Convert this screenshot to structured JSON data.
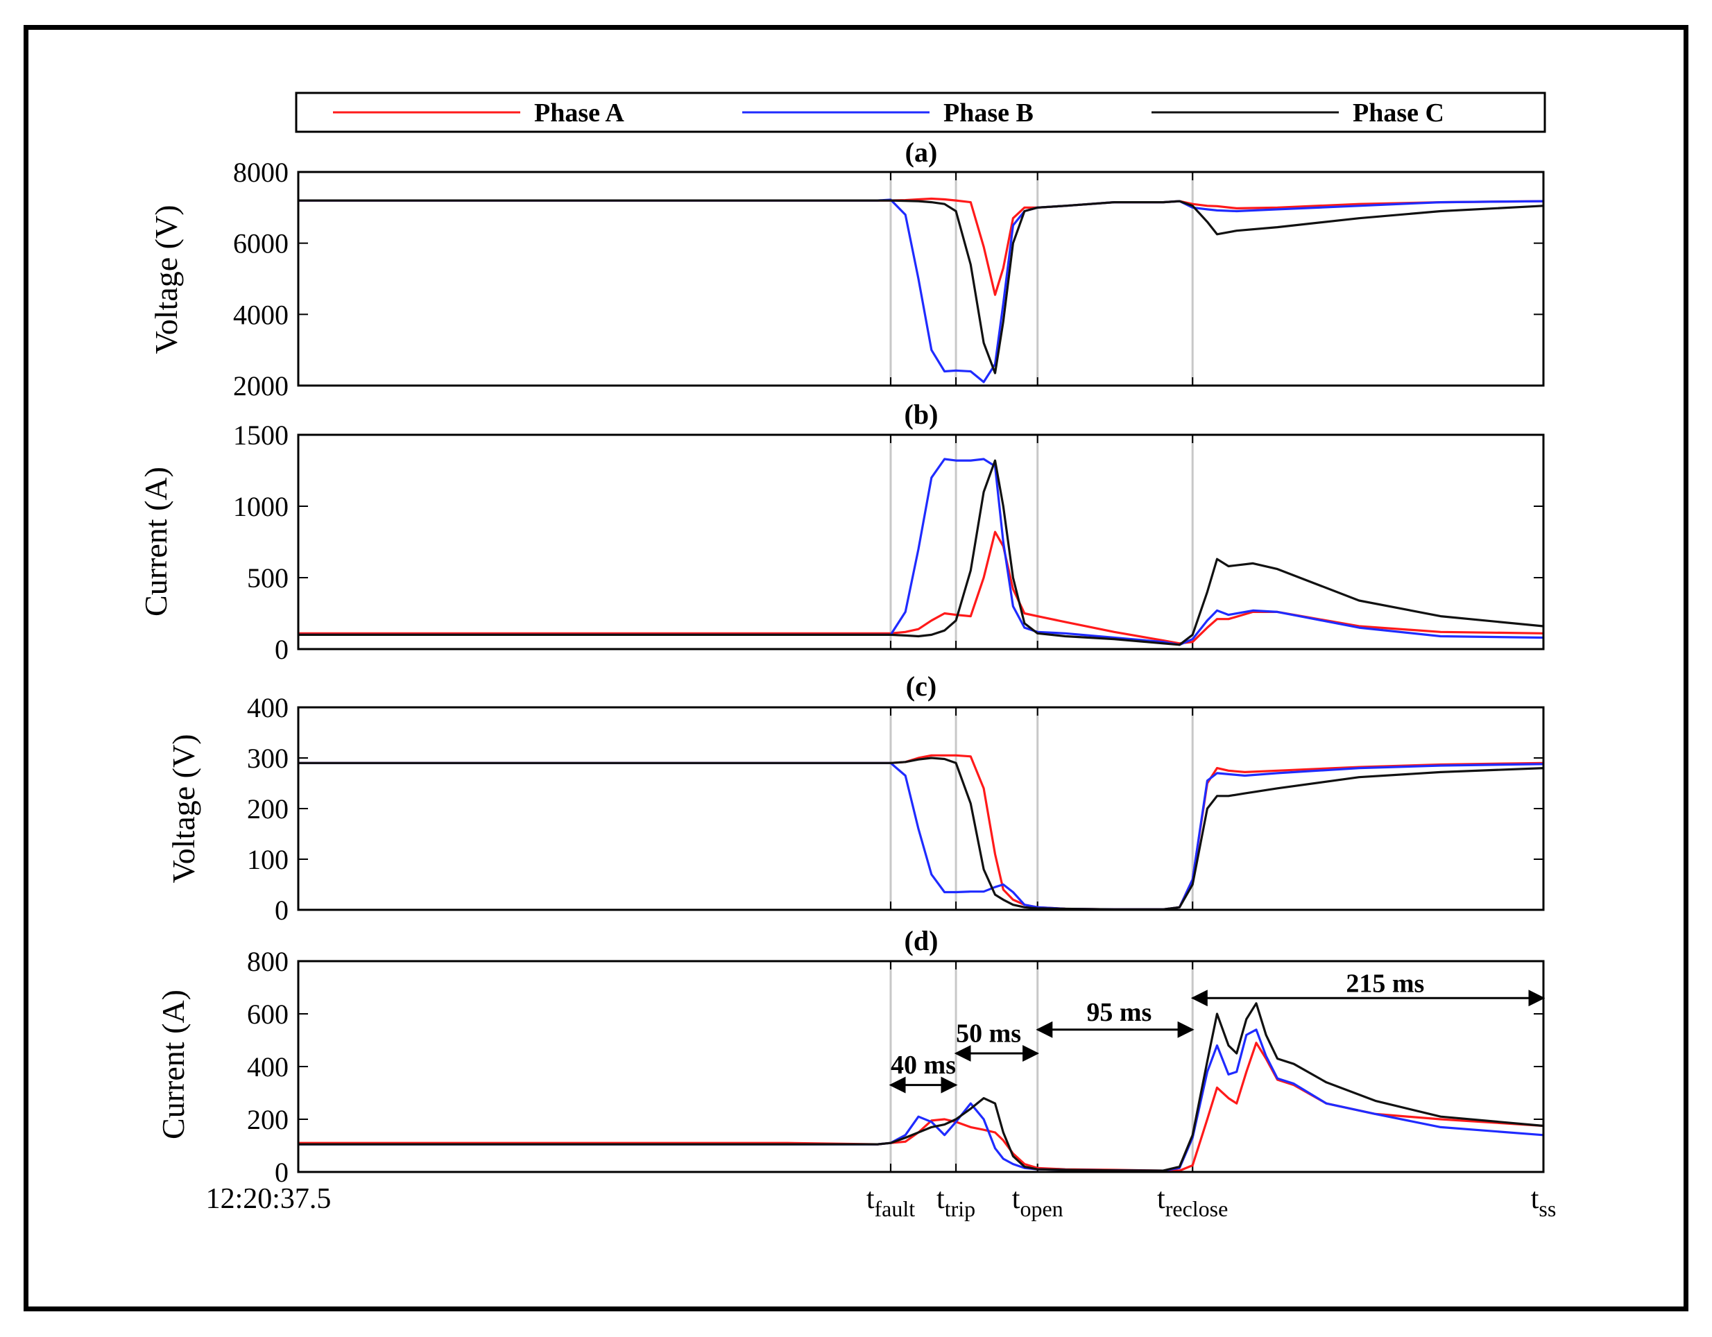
{
  "legend": {
    "items": [
      {
        "label": "Phase A",
        "color": "#ff1a1a"
      },
      {
        "label": "Phase B",
        "color": "#1f2bff"
      },
      {
        "label": "Phase C",
        "color": "#111111"
      }
    ]
  },
  "colors": {
    "phase_a": "#ff1a1a",
    "phase_b": "#1f2bff",
    "phase_c": "#111111",
    "grid": "#c8c8c8"
  },
  "x_axis": {
    "start_label": "12:20:37.5",
    "events": [
      {
        "main": "t",
        "sub": "fault",
        "x": 363
      },
      {
        "main": "t",
        "sub": "trip",
        "x": 403
      },
      {
        "main": "t",
        "sub": "open",
        "x": 453
      },
      {
        "main": "t",
        "sub": "reclose",
        "x": 548
      },
      {
        "main": "t",
        "sub": "ss",
        "x": 763
      }
    ],
    "xlim": [
      0,
      763
    ]
  },
  "annotations": [
    {
      "label": "40 ms",
      "from": 363,
      "to": 403,
      "y": 330,
      "label_x": 383,
      "label_y": 410
    },
    {
      "label": "50 ms",
      "from": 403,
      "to": 453,
      "y": 450,
      "label_x": 423,
      "label_y": 530
    },
    {
      "label": "95 ms",
      "from": 453,
      "to": 548,
      "y": 540,
      "label_x": 503,
      "label_y": 610
    },
    {
      "label": "215 ms",
      "from": 548,
      "to": 763,
      "y": 660,
      "label_x": 666,
      "label_y": 720
    }
  ],
  "chart_data": [
    {
      "type": "line",
      "title": "(a)",
      "ylabel": "Voltage (V)",
      "ylim": [
        2000,
        8000
      ],
      "yticks": [
        "2000",
        "4000",
        "6000",
        "8000"
      ],
      "x": [
        0,
        100,
        200,
        300,
        355,
        363,
        372,
        380,
        388,
        396,
        403,
        412,
        420,
        427,
        432,
        438,
        445,
        453,
        470,
        500,
        530,
        540,
        548,
        557,
        563,
        575,
        600,
        650,
        700,
        763
      ],
      "series": [
        {
          "name": "Phase A",
          "values": [
            7200,
            7200,
            7200,
            7200,
            7200,
            7200,
            7210,
            7230,
            7250,
            7230,
            7200,
            7150,
            5900,
            4550,
            5300,
            6700,
            7000,
            7000,
            7050,
            7150,
            7150,
            7180,
            7100,
            7050,
            7040,
            6980,
            7000,
            7100,
            7150,
            7180
          ]
        },
        {
          "name": "Phase B",
          "values": [
            7200,
            7200,
            7200,
            7200,
            7200,
            7220,
            6800,
            5000,
            3000,
            2400,
            2420,
            2400,
            2100,
            2600,
            4300,
            6500,
            6900,
            7000,
            7050,
            7150,
            7150,
            7180,
            7000,
            6950,
            6920,
            6900,
            6950,
            7050,
            7150,
            7180
          ]
        },
        {
          "name": "Phase C",
          "values": [
            7200,
            7200,
            7200,
            7200,
            7200,
            7200,
            7190,
            7180,
            7150,
            7100,
            6900,
            5400,
            3200,
            2350,
            3800,
            6000,
            6900,
            7000,
            7050,
            7150,
            7150,
            7180,
            7050,
            6600,
            6250,
            6350,
            6450,
            6700,
            6900,
            7050
          ]
        }
      ]
    },
    {
      "type": "line",
      "title": "(b)",
      "ylabel": "Current (A)",
      "ylim": [
        0,
        1500
      ],
      "yticks": [
        "0",
        "500",
        "1000",
        "1500"
      ],
      "x": [
        0,
        100,
        200,
        300,
        355,
        363,
        372,
        380,
        388,
        396,
        403,
        412,
        420,
        427,
        432,
        438,
        445,
        453,
        470,
        500,
        530,
        540,
        548,
        557,
        563,
        570,
        585,
        600,
        650,
        700,
        763
      ],
      "series": [
        {
          "name": "Phase A",
          "values": [
            110,
            110,
            110,
            110,
            110,
            110,
            120,
            140,
            200,
            250,
            240,
            230,
            500,
            820,
            720,
            420,
            250,
            230,
            190,
            120,
            60,
            40,
            50,
            150,
            210,
            210,
            260,
            260,
            160,
            120,
            110
          ]
        },
        {
          "name": "Phase B",
          "values": [
            100,
            100,
            100,
            100,
            100,
            100,
            260,
            700,
            1200,
            1330,
            1320,
            1320,
            1330,
            1280,
            750,
            300,
            150,
            120,
            110,
            80,
            50,
            30,
            70,
            200,
            270,
            240,
            270,
            260,
            150,
            90,
            80
          ]
        },
        {
          "name": "Phase C",
          "values": [
            100,
            100,
            100,
            100,
            100,
            100,
            95,
            90,
            100,
            130,
            200,
            550,
            1100,
            1320,
            1000,
            500,
            180,
            110,
            90,
            70,
            40,
            30,
            100,
            400,
            630,
            580,
            600,
            560,
            340,
            230,
            160
          ]
        }
      ]
    },
    {
      "type": "line",
      "title": "(c)",
      "ylabel": "Voltage (V)",
      "ylim": [
        0,
        400
      ],
      "yticks": [
        "0",
        "100",
        "200",
        "300",
        "400"
      ],
      "x": [
        0,
        100,
        200,
        300,
        355,
        363,
        372,
        380,
        388,
        396,
        403,
        412,
        420,
        427,
        432,
        438,
        445,
        453,
        470,
        500,
        530,
        540,
        548,
        557,
        563,
        570,
        580,
        600,
        650,
        700,
        763
      ],
      "series": [
        {
          "name": "Phase A",
          "values": [
            290,
            290,
            290,
            290,
            290,
            290,
            292,
            300,
            305,
            305,
            305,
            303,
            240,
            110,
            40,
            20,
            10,
            5,
            2,
            1,
            1,
            5,
            60,
            250,
            280,
            275,
            272,
            275,
            282,
            287,
            290
          ]
        },
        {
          "name": "Phase B",
          "values": [
            290,
            290,
            290,
            290,
            290,
            290,
            265,
            160,
            70,
            35,
            35,
            36,
            36,
            45,
            50,
            35,
            10,
            5,
            2,
            1,
            1,
            5,
            60,
            255,
            270,
            268,
            265,
            270,
            280,
            285,
            288
          ]
        },
        {
          "name": "Phase C",
          "values": [
            290,
            290,
            290,
            290,
            290,
            290,
            292,
            297,
            300,
            298,
            290,
            210,
            80,
            30,
            20,
            10,
            5,
            3,
            2,
            1,
            1,
            5,
            50,
            200,
            225,
            225,
            230,
            240,
            262,
            272,
            280
          ]
        }
      ]
    },
    {
      "type": "line",
      "title": "(d)",
      "ylabel": "Current (A)",
      "ylim": [
        0,
        800
      ],
      "yticks": [
        "0",
        "200",
        "400",
        "600",
        "800"
      ],
      "x": [
        0,
        100,
        200,
        300,
        355,
        363,
        372,
        380,
        388,
        396,
        403,
        412,
        420,
        427,
        432,
        438,
        445,
        453,
        470,
        500,
        530,
        540,
        548,
        557,
        563,
        570,
        575,
        581,
        587,
        593,
        600,
        610,
        630,
        660,
        700,
        763
      ],
      "series": [
        {
          "name": "Phase A",
          "values": [
            110,
            110,
            110,
            110,
            105,
            110,
            115,
            150,
            195,
            200,
            190,
            170,
            160,
            150,
            120,
            70,
            30,
            15,
            10,
            8,
            5,
            5,
            25,
            200,
            320,
            280,
            260,
            380,
            490,
            430,
            350,
            330,
            260,
            220,
            200,
            175
          ]
        },
        {
          "name": "Phase B",
          "values": [
            105,
            105,
            105,
            105,
            105,
            110,
            140,
            210,
            190,
            140,
            190,
            260,
            200,
            90,
            50,
            30,
            15,
            10,
            8,
            6,
            5,
            15,
            130,
            380,
            480,
            370,
            380,
            520,
            540,
            440,
            355,
            335,
            260,
            220,
            170,
            140
          ]
        },
        {
          "name": "Phase C",
          "values": [
            105,
            105,
            105,
            105,
            105,
            110,
            130,
            150,
            170,
            180,
            200,
            240,
            280,
            260,
            150,
            60,
            20,
            10,
            8,
            6,
            5,
            20,
            140,
            420,
            600,
            480,
            450,
            580,
            640,
            520,
            430,
            410,
            340,
            270,
            210,
            175
          ]
        }
      ]
    }
  ]
}
